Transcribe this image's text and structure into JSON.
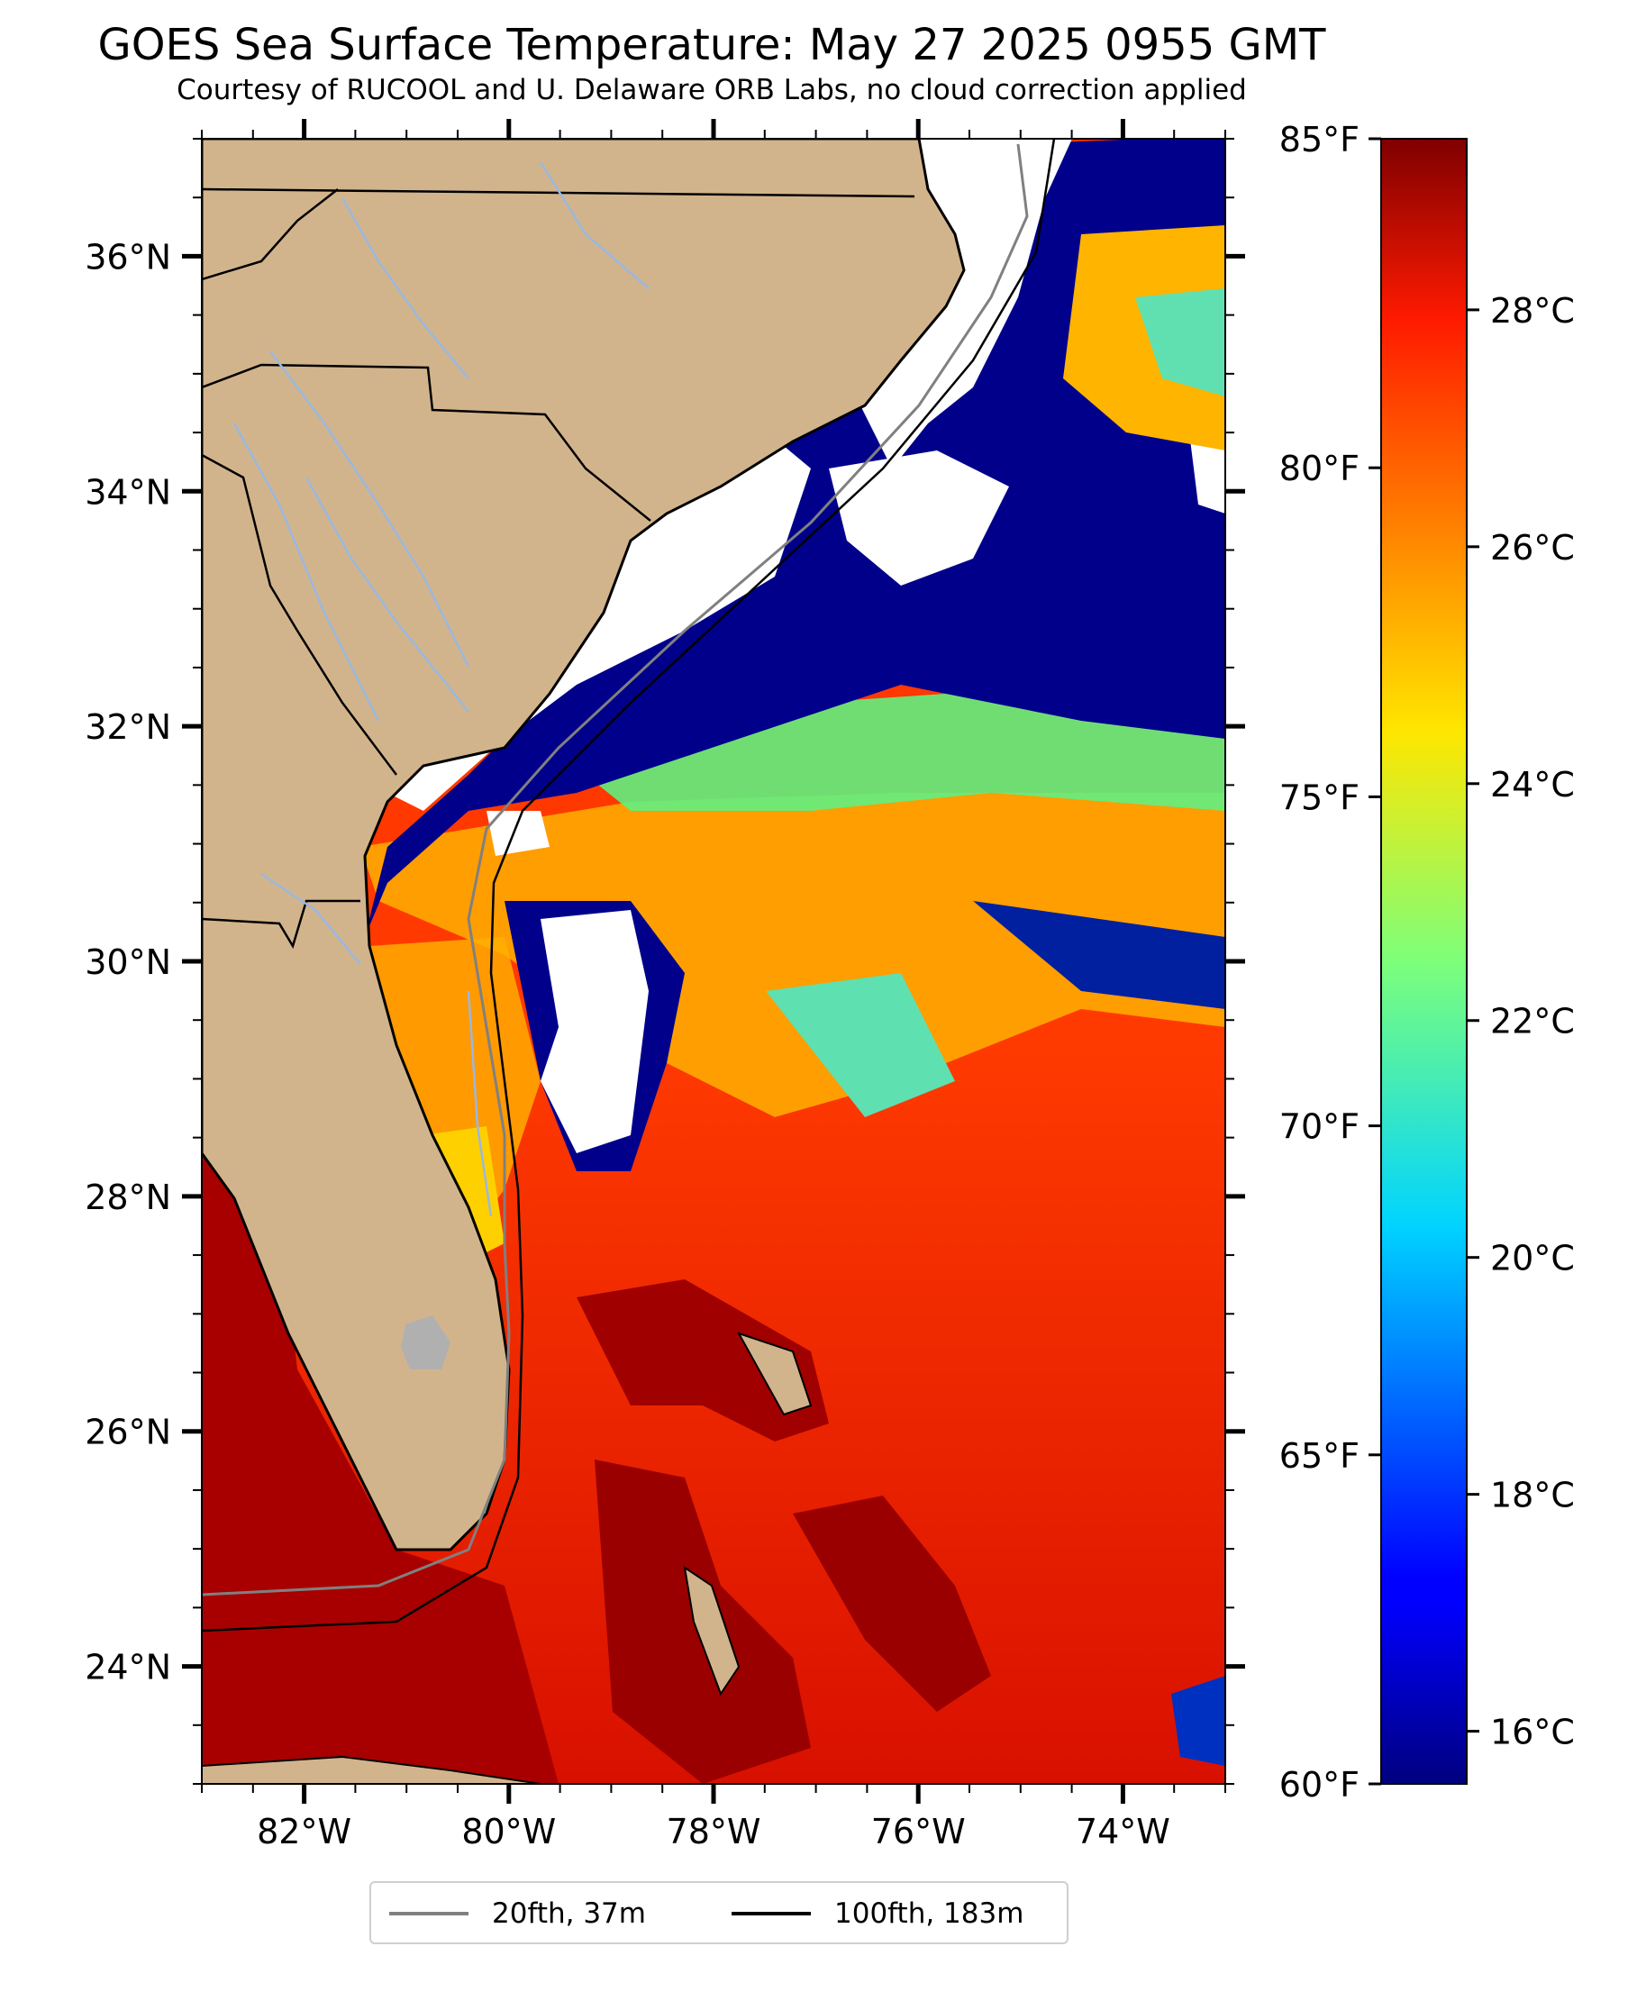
{
  "title": "GOES Sea Surface Temperature: May 27 2025 0955 GMT",
  "subtitle": "Courtesy of RUCOOL and U. Delaware ORB Labs, no cloud correction applied",
  "map": {
    "lon_range": [
      -83,
      -73
    ],
    "lat_range": [
      23,
      37
    ],
    "lat_ticks": [
      {
        "value": 24,
        "label": "24°N"
      },
      {
        "value": 26,
        "label": "26°N"
      },
      {
        "value": 28,
        "label": "28°N"
      },
      {
        "value": 30,
        "label": "30°N"
      },
      {
        "value": 32,
        "label": "32°N"
      },
      {
        "value": 34,
        "label": "34°N"
      },
      {
        "value": 36,
        "label": "36°N"
      }
    ],
    "lon_ticks": [
      {
        "value": -82,
        "label": "82°W"
      },
      {
        "value": -80,
        "label": "80°W"
      },
      {
        "value": -78,
        "label": "78°W"
      },
      {
        "value": -76,
        "label": "76°W"
      },
      {
        "value": -74,
        "label": "74°W"
      }
    ],
    "colors": {
      "land": "#d2b48c",
      "clouds_nodata": "#ffffff",
      "cold_water": "#00008b",
      "warm_water": "#ff3300",
      "hot_water": "#a00000",
      "rivers": "#9ab8e0",
      "borders": "#000000"
    }
  },
  "colorbar": {
    "fahrenheit": [
      {
        "value": 60,
        "label": "60°F"
      },
      {
        "value": 65,
        "label": "65°F"
      },
      {
        "value": 70,
        "label": "70°F"
      },
      {
        "value": 75,
        "label": "75°F"
      },
      {
        "value": 80,
        "label": "80°F"
      },
      {
        "value": 85,
        "label": "85°F"
      }
    ],
    "celsius": [
      {
        "value": 16,
        "label": "16°C"
      },
      {
        "value": 18,
        "label": "18°C"
      },
      {
        "value": 20,
        "label": "20°C"
      },
      {
        "value": 22,
        "label": "22°C"
      },
      {
        "value": 24,
        "label": "24°C"
      },
      {
        "value": 26,
        "label": "26°C"
      },
      {
        "value": 28,
        "label": "28°C"
      }
    ],
    "range_f": [
      60,
      85
    ],
    "colormap": "jet"
  },
  "legend": [
    {
      "label": "20fth, 37m",
      "color": "#808080"
    },
    {
      "label": "100fth, 183m",
      "color": "#000000"
    }
  ]
}
